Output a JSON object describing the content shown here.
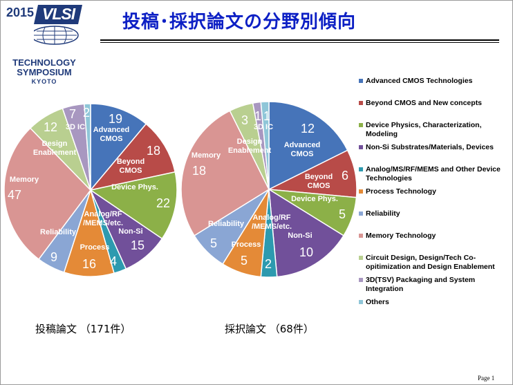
{
  "logo": {
    "year": "2015",
    "mark": "VLSI",
    "line1": "TECHNOLOGY",
    "line2": "SYMPOSIUM",
    "line3": "KYOTO"
  },
  "title": "投稿･採択論文の分野別傾向",
  "page_number": "Page 1",
  "colors": {
    "title": "#0c1fc4",
    "advanced_cmos": "#4674b9",
    "beyond_cmos": "#b84b48",
    "device_phys": "#8cb048",
    "non_si": "#71509a",
    "analog": "#2d9aaf",
    "process": "#e48a37",
    "reliability": "#8aa6d4",
    "memory": "#d99593",
    "design": "#b9cf90",
    "3d_ic": "#a897c0",
    "others": "#8fc6d8"
  },
  "chart_data": [
    {
      "type": "pie",
      "caption": "投稿論文 （171件）",
      "categories": [
        "Advanced CMOS",
        "Beyond CMOS",
        "Device Phys.",
        "Non-Si",
        "Analog/RF /MEMS/etc.",
        "Process",
        "Reliability",
        "Memory",
        "Design Enablement",
        "3D IC",
        "Others"
      ],
      "values": [
        19,
        18,
        22,
        15,
        4,
        16,
        9,
        47,
        12,
        7,
        2
      ],
      "slice_labels": [
        [
          "Advanced",
          "CMOS"
        ],
        [
          "Beyond",
          "CMOS"
        ],
        [
          "Device Phys."
        ],
        [
          "Non-Si"
        ],
        [
          "Analog/RF",
          "/MEMS/etc."
        ],
        [
          "Process"
        ],
        [
          "Reliability"
        ],
        [
          "Memory"
        ],
        [
          "Design",
          "Enablement"
        ],
        [
          "3D IC"
        ],
        []
      ]
    },
    {
      "type": "pie",
      "caption": "採択論文 （68件）",
      "categories": [
        "Advanced CMOS",
        "Beyond CMOS",
        "Device Phys.",
        "Non-Si",
        "Analog/RF /MEMS/etc.",
        "Process",
        "Reliability",
        "Memory",
        "Design Enablement",
        "3D IC",
        "Others"
      ],
      "values": [
        12,
        6,
        5,
        10,
        2,
        5,
        5,
        18,
        3,
        1,
        1
      ],
      "slice_labels": [
        [
          "Advanced",
          "CMOS"
        ],
        [
          "Beyond",
          "CMOS"
        ],
        [
          "Device Phys."
        ],
        [
          "Non-Si"
        ],
        [
          "Analog/RF",
          "/MEMS/etc."
        ],
        [
          "Process"
        ],
        [
          "Reliability"
        ],
        [
          "Memory"
        ],
        [
          "Design",
          "Enablement"
        ],
        [
          "3D IC"
        ],
        []
      ]
    }
  ],
  "legend": [
    {
      "label": "Advanced CMOS Technologies",
      "color": "#4674b9"
    },
    {
      "label": "Beyond CMOS and New concepts",
      "color": "#b84b48"
    },
    {
      "label": "Device Physics, Characterization, Modeling",
      "color": "#8cb048"
    },
    {
      "label": "Non-Si Substrates/Materials, Devices",
      "color": "#71509a"
    },
    {
      "label": "Analog/MS/RF/MEMS  and Other Device Technologies",
      "color": "#2d9aaf"
    },
    {
      "label": "Process Technology",
      "color": "#e48a37"
    },
    {
      "label": "Reliability",
      "color": "#8aa6d4"
    },
    {
      "label": "Memory Technology",
      "color": "#d99593"
    },
    {
      "label": "Circuit Design, Design/Tech Co-opitimization and Design Enablement",
      "color": "#b9cf90"
    },
    {
      "label": "3D(TSV) Packaging and System Integration",
      "color": "#a897c0"
    },
    {
      "label": "Others",
      "color": "#8fc6d8"
    }
  ]
}
